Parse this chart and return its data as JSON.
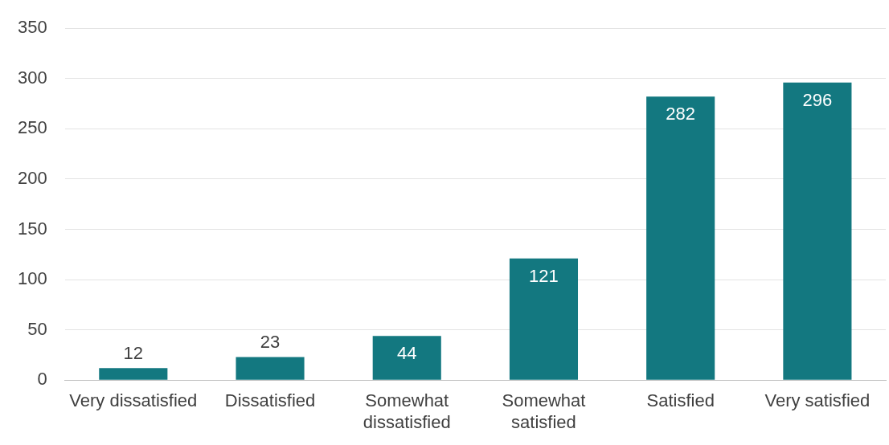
{
  "chart_data": {
    "type": "bar",
    "categories": [
      "Very dissatisfied",
      "Dissatisfied",
      "Somewhat dissatisfied",
      "Somewhat satisfied",
      "Satisfied",
      "Very satisfied"
    ],
    "values": [
      12,
      23,
      44,
      121,
      282,
      296
    ],
    "color": "#137880",
    "ylim": [
      0,
      350
    ],
    "yticks": [
      0,
      50,
      100,
      150,
      200,
      250,
      300,
      350
    ],
    "grid": "y",
    "data_labels": true
  }
}
